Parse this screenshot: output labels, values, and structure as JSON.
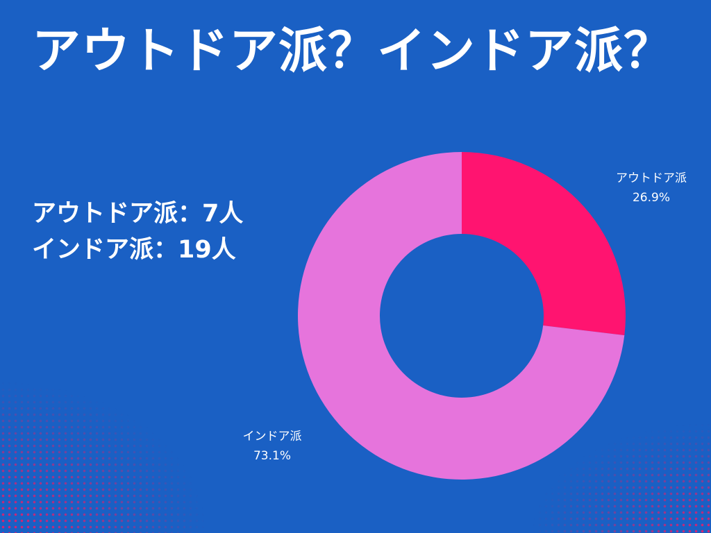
{
  "title": "アウトドア派？インドア派？",
  "counts": {
    "outdoor": "アウトドア派：7人",
    "indoor": "インドア派：19人"
  },
  "colors": {
    "background": "#1a60c4",
    "outdoor": "#ff1470",
    "indoor": "#e674dc",
    "halftone": "#e0206e"
  },
  "chart_data": {
    "type": "pie",
    "variant": "donut",
    "title": "",
    "categories": [
      "アウトドア派",
      "インドア派"
    ],
    "values": [
      26.9,
      73.1
    ],
    "value_labels": [
      "26.9%",
      "73.1%"
    ],
    "counts": [
      7,
      19
    ],
    "legend": "none"
  }
}
